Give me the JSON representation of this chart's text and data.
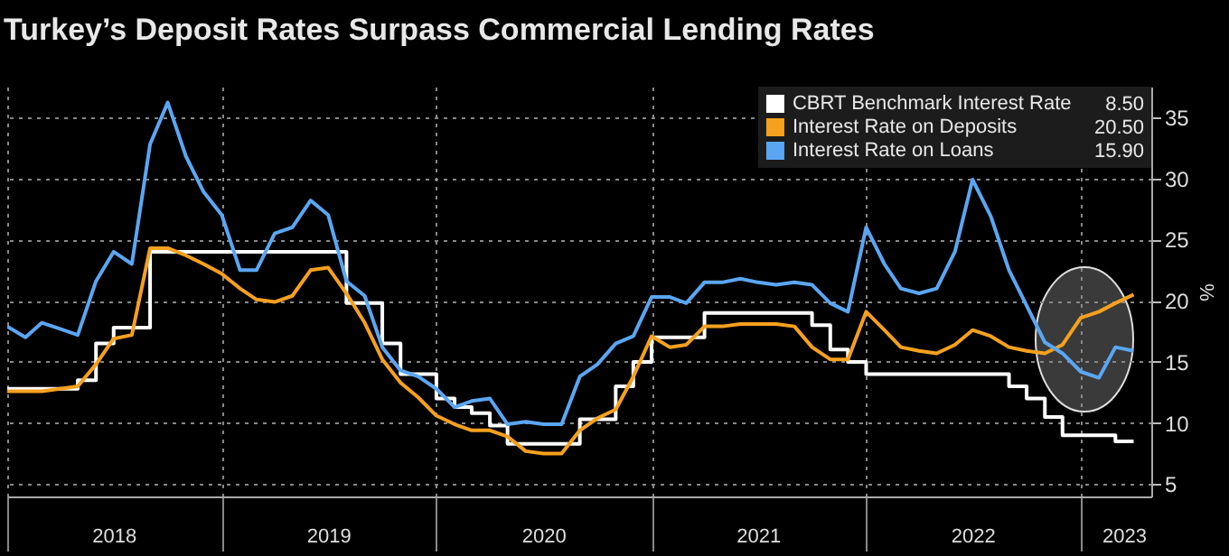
{
  "chart_data": {
    "type": "line",
    "title": "Turkey’s Deposit Rates Surpass Commercial Lending Rates",
    "y2label": "%",
    "x": [
      "2018-01",
      "2018-02",
      "2018-03",
      "2018-04",
      "2018-05",
      "2018-06",
      "2018-07",
      "2018-08",
      "2018-09",
      "2018-10",
      "2018-11",
      "2018-12",
      "2019-01",
      "2019-02",
      "2019-03",
      "2019-04",
      "2019-05",
      "2019-06",
      "2019-07",
      "2019-08",
      "2019-09",
      "2019-10",
      "2019-11",
      "2019-12",
      "2020-01",
      "2020-02",
      "2020-03",
      "2020-04",
      "2020-05",
      "2020-06",
      "2020-07",
      "2020-08",
      "2020-09",
      "2020-10",
      "2020-11",
      "2020-12",
      "2021-01",
      "2021-02",
      "2021-03",
      "2021-04",
      "2021-05",
      "2021-06",
      "2021-07",
      "2021-08",
      "2021-09",
      "2021-10",
      "2021-11",
      "2021-12",
      "2022-01",
      "2022-02",
      "2022-03",
      "2022-04",
      "2022-05",
      "2022-06",
      "2022-07",
      "2022-08",
      "2022-09",
      "2022-10",
      "2022-11",
      "2022-12",
      "2023-01",
      "2023-02",
      "2023-03",
      "2023-04"
    ],
    "series": [
      {
        "name": "CBRT Benchmark Interest Rate",
        "type": "step",
        "axis": "y2",
        "color": "#ffffff",
        "values": [
          12.8,
          12.8,
          12.8,
          12.8,
          13.5,
          16.5,
          17.8,
          17.8,
          24,
          24,
          24,
          24,
          24,
          24,
          24,
          24,
          24,
          24,
          24,
          19.8,
          19.8,
          16.5,
          14,
          14,
          12,
          11.3,
          10.8,
          9.8,
          8.3,
          8.3,
          8.3,
          8.3,
          10.3,
          10.3,
          13,
          15,
          17,
          17,
          17,
          19,
          19,
          19,
          19,
          19,
          19,
          18,
          16,
          15,
          14,
          14,
          14,
          14,
          14,
          14,
          14,
          14,
          13,
          12,
          10.5,
          9,
          9,
          9,
          8.5,
          8.5
        ]
      },
      {
        "name": "Interest Rate on Deposits",
        "type": "line",
        "axis": "y2",
        "color": "#f5a01e",
        "values": [
          12.6,
          12.6,
          12.6,
          12.8,
          13,
          14.8,
          16.9,
          17.2,
          24.3,
          24.3,
          23.7,
          23,
          22.2,
          21,
          20.1,
          19.9,
          20.4,
          22.5,
          22.7,
          20.6,
          18.2,
          15.2,
          13.3,
          12.1,
          10.6,
          9.9,
          9.4,
          9.4,
          8.9,
          7.7,
          7.5,
          7.5,
          9.4,
          10.4,
          11.1,
          13.8,
          17.1,
          16.2,
          16.4,
          17.9,
          17.9,
          18.1,
          18.1,
          18.1,
          17.9,
          16.2,
          15.2,
          15.2,
          19.1,
          17.6,
          16.2,
          15.9,
          15.7,
          16.4,
          17.6,
          17.1,
          16.2,
          15.9,
          15.7,
          16.4,
          18.6,
          19.1,
          19.8,
          20.5
        ]
      },
      {
        "name": "Interest Rate on Loans",
        "type": "line",
        "axis": "y2",
        "color": "#5aa6f2",
        "values": [
          17.9,
          17,
          18.2,
          17.7,
          17.2,
          21.6,
          24,
          23,
          32.8,
          36.2,
          31.8,
          28.9,
          27,
          22.5,
          22.5,
          25.5,
          26,
          28.2,
          27,
          21.6,
          20.4,
          16.2,
          14.3,
          13.8,
          12.8,
          11.3,
          11.8,
          12,
          9.9,
          10.1,
          9.9,
          9.9,
          13.8,
          14.8,
          16.5,
          17.1,
          20.3,
          20.3,
          19.8,
          21.5,
          21.5,
          21.8,
          21.5,
          21.3,
          21.5,
          21.3,
          19.8,
          19.1,
          26,
          23,
          21,
          20.6,
          21,
          24,
          29.9,
          26.9,
          22.5,
          19.6,
          16.6,
          15.7,
          14.2,
          13.7,
          16.2,
          15.9
        ]
      }
    ],
    "annotations": [
      "8.50",
      "20.50",
      "15.90"
    ],
    "xlim": [
      "2018-01",
      "2023-05"
    ],
    "xticks": [
      {
        "value": "2018-01",
        "label": null
      },
      {
        "value": "2018-07",
        "label": "2018"
      },
      {
        "value": "2019-01",
        "label": null
      },
      {
        "value": "2019-07",
        "label": "2019"
      },
      {
        "value": "2020-01",
        "label": null
      },
      {
        "value": "2020-07",
        "label": "2020"
      },
      {
        "value": "2021-01",
        "label": null
      },
      {
        "value": "2021-07",
        "label": "2021"
      },
      {
        "value": "2022-01",
        "label": null
      },
      {
        "value": "2022-07",
        "label": "2022"
      },
      {
        "value": "2023-01",
        "label": null
      },
      {
        "value": "2023-03-15",
        "label": "2023"
      }
    ],
    "y2lim": [
      4,
      37.5
    ],
    "y2ticks": [
      5,
      10,
      15,
      20,
      25,
      30,
      35
    ],
    "grid": true,
    "legend": "top right"
  }
}
